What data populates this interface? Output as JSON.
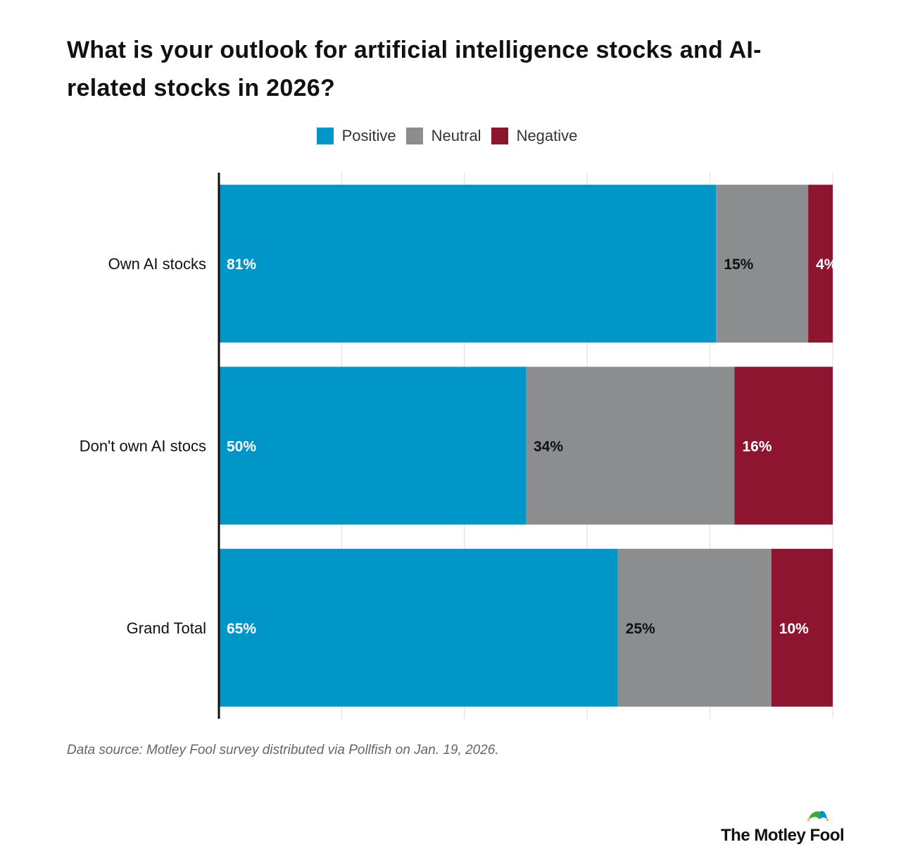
{
  "chart_data": {
    "type": "bar",
    "orientation": "horizontal",
    "stacked": true,
    "title": "What is your outlook for artificial intelligence stocks and AI-related stocks in 2026?",
    "categories": [
      "Own AI stocks",
      "Don't own AI stocs",
      "Grand Total"
    ],
    "series": [
      {
        "name": "Positive",
        "color": "#0096C8",
        "values": [
          81,
          50,
          65
        ],
        "labels": [
          "81%",
          "50%",
          "65%"
        ],
        "label_color": "#ffffff"
      },
      {
        "name": "Neutral",
        "color": "#8C8D8F",
        "values": [
          15,
          34,
          25
        ],
        "labels": [
          "15%",
          "34%",
          "25%"
        ],
        "label_color": "#111111"
      },
      {
        "name": "Negative",
        "color": "#8E1530",
        "values": [
          4,
          16,
          10
        ],
        "labels": [
          "4%",
          "16%",
          "10%"
        ],
        "label_color": "#ffffff"
      }
    ],
    "xlim": [
      0,
      100
    ],
    "grid": true,
    "x_tick_labels_shown": false,
    "legend_position": "top-center"
  },
  "source": "Data source: Motley Fool survey distributed via Pollfish on Jan. 19, 2026.",
  "brand": {
    "logo_text": "The Motley Fool",
    "colors": {
      "green": "#3BAA35",
      "blue": "#0096C8",
      "gold": "#F5B932"
    }
  }
}
